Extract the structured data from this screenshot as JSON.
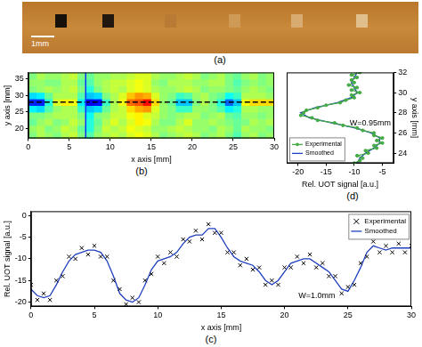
{
  "photo": {
    "caption": "(a)",
    "scale_label": "1mm"
  },
  "chart_data": [
    {
      "type": "heatmap",
      "caption": "(b)",
      "x_label": "x axis [mm]",
      "y_label": "y axis [mm]",
      "xlim": [
        0,
        30
      ],
      "xticks": [
        0,
        5,
        10,
        15,
        20,
        25,
        30
      ],
      "ylim": [
        17,
        37
      ],
      "yticks": [
        20,
        25,
        30,
        35
      ],
      "grid": false,
      "x": [
        0.5,
        1.5,
        2.5,
        3.5,
        4.5,
        5.5,
        6.5,
        7.5,
        8.5,
        9.5,
        10.5,
        11.5,
        12.5,
        13.5,
        14.5,
        15.5,
        16.5,
        17.5,
        18.5,
        19.5,
        20.5,
        21.5,
        22.5,
        23.5,
        24.5,
        25.5,
        26.5,
        27.5,
        28.5,
        29.5
      ],
      "y": [
        18,
        20,
        22,
        24,
        26,
        28,
        30,
        32,
        34,
        36
      ],
      "cells": [
        [
          -11,
          -10,
          -10.5,
          -11,
          -10,
          -9.5,
          -11,
          -12,
          -10.5,
          -10,
          -9.5,
          -10,
          -9,
          -8.5,
          -9,
          -10,
          -11,
          -10.5,
          -10,
          -9.5,
          -10,
          -11,
          -10.5,
          -10,
          -11,
          -12,
          -10.5,
          -10,
          -11,
          -10.5
        ],
        [
          -10.5,
          -10,
          -11,
          -10.5,
          -9.5,
          -10,
          -11.5,
          -13,
          -11,
          -9.5,
          -10,
          -9.5,
          -8.5,
          -9,
          -9.5,
          -10.5,
          -10.5,
          -10,
          -9.5,
          -10,
          -10.5,
          -10.5,
          -11,
          -10,
          -10.5,
          -11.5,
          -10,
          -10.5,
          -10.5,
          -11
        ],
        [
          -11.5,
          -10.5,
          -10,
          -11,
          -10.5,
          -9.5,
          -10.5,
          -13,
          -11.5,
          -10,
          -9,
          -10,
          -9,
          -8,
          -8.5,
          -10,
          -11,
          -11,
          -10,
          -9,
          -10.5,
          -10.5,
          -10,
          -10.5,
          -11,
          -11.5,
          -11,
          -10,
          -10.5,
          -10
        ],
        [
          -11,
          -11,
          -10.5,
          -10,
          -10,
          -10,
          -11,
          -13.5,
          -11,
          -10.5,
          -9.5,
          -9.5,
          -8.5,
          -8,
          -9,
          -9.5,
          -10.5,
          -11,
          -10.5,
          -10,
          -10,
          -11,
          -10.5,
          -10,
          -11.5,
          -12,
          -10.5,
          -10.5,
          -11,
          -10.5
        ],
        [
          -14,
          -14.5,
          -12,
          -10.5,
          -10,
          -10,
          -12.5,
          -15,
          -14.5,
          -11.5,
          -10,
          -9.5,
          -7.5,
          -6.5,
          -6,
          -9,
          -10.5,
          -11,
          -12.5,
          -12.5,
          -10.5,
          -10.5,
          -11,
          -12,
          -14,
          -13,
          -10,
          -10,
          -10.5,
          -10.5
        ],
        [
          -18.5,
          -18.5,
          -13,
          -9,
          -8,
          -8.5,
          -14,
          -19.5,
          -19,
          -12.5,
          -10,
          -8.5,
          -5,
          -4.5,
          -3,
          -7.5,
          -10.5,
          -11.5,
          -15,
          -15,
          -11,
          -10,
          -11,
          -13,
          -17,
          -15,
          -8.5,
          -7.5,
          -7.5,
          -7.5
        ],
        [
          -14.5,
          -14,
          -11.5,
          -10,
          -10,
          -10,
          -12,
          -15,
          -14.5,
          -11,
          -10,
          -9,
          -7,
          -6,
          -6.5,
          -9,
          -10.5,
          -11,
          -12.5,
          -12,
          -10.5,
          -10,
          -11,
          -11.5,
          -13.5,
          -12.5,
          -10,
          -10,
          -10,
          -10.5
        ],
        [
          -11,
          -10.5,
          -10,
          -10.5,
          -10,
          -9.5,
          -11,
          -13,
          -11,
          -10,
          -9.5,
          -10,
          -9,
          -8.5,
          -9,
          -10,
          -10.5,
          -10.5,
          -10,
          -9.5,
          -10,
          -11,
          -10.5,
          -10.5,
          -11,
          -11.5,
          -10.5,
          -10,
          -10.5,
          -11
        ],
        [
          -10.5,
          -10.5,
          -11,
          -11,
          -10,
          -10,
          -11.5,
          -12,
          -10.5,
          -10,
          -9.5,
          -9.5,
          -9,
          -8.5,
          -9,
          -10.5,
          -11,
          -10,
          -10,
          -10,
          -10.5,
          -10.5,
          -10,
          -10,
          -11,
          -12,
          -11,
          -10.5,
          -11,
          -10.5
        ],
        [
          -11,
          -10,
          -10.5,
          -10.5,
          -10,
          -9.5,
          -11,
          -11.5,
          -10.5,
          -10.5,
          -10,
          -10,
          -9.5,
          -9,
          -9,
          -10,
          -10.5,
          -10.5,
          -10,
          -9.5,
          -10,
          -11,
          -10.5,
          -10,
          -11,
          -11.5,
          -10.5,
          -10,
          -11,
          -10.5
        ]
      ],
      "color_range": [
        -22,
        0
      ],
      "hline": 28,
      "vline": 7
    },
    {
      "type": "line",
      "caption": "(d)",
      "x_label": "Rel. UOT signal [a.u.]",
      "y_label": "y axis [mm]",
      "xlim": [
        -22,
        -3
      ],
      "xticks": [
        -20,
        -15,
        -10,
        -5
      ],
      "ylim": [
        23,
        32
      ],
      "yticks": [
        24,
        26,
        28,
        30,
        32
      ],
      "grid": false,
      "legend": "lower left",
      "series": [
        {
          "name": "Experimental",
          "color": "#44aa44",
          "marker": "circle",
          "line_style": "solid",
          "x": [
            -10,
            -9,
            -8.5,
            -9.5,
            -7.5,
            -8,
            -6,
            -6.5,
            -5,
            -6,
            -5,
            -6.5,
            -6.5,
            -8.5,
            -9.5,
            -12,
            -13.5,
            -16.5,
            -17.5,
            -19.5,
            -19,
            -18.5,
            -16.5,
            -15,
            -12.5,
            -11.5,
            -10,
            -10.5,
            -9,
            -10.5,
            -9.5,
            -11,
            -10,
            -10.5,
            -9.5,
            -10.5,
            -9
          ],
          "y": [
            23,
            23.25,
            23.5,
            23.75,
            24,
            24.25,
            24.5,
            24.75,
            25,
            25.25,
            25.5,
            25.75,
            26,
            26.25,
            26.5,
            26.75,
            27,
            27.25,
            27.5,
            27.75,
            28,
            28.25,
            28.5,
            28.75,
            29,
            29.25,
            29.5,
            29.75,
            30,
            30.25,
            30.5,
            30.75,
            31,
            31.25,
            31.5,
            31.75,
            32
          ]
        },
        {
          "name": "Smoothed",
          "color": "#1f3fbf",
          "marker": "none",
          "line_style": "solid",
          "x": [
            -9.5,
            -9,
            -8,
            -6.5,
            -5.5,
            -5.5,
            -7,
            -10,
            -14,
            -18,
            -19.5,
            -17,
            -13,
            -10.5,
            -9.5,
            -10,
            -10.5,
            -10,
            -9.5
          ],
          "y": [
            23,
            23.5,
            24,
            24.5,
            25,
            25.5,
            26,
            26.5,
            27,
            27.5,
            28,
            28.5,
            29,
            29.5,
            30,
            30.5,
            31,
            31.5,
            32
          ]
        }
      ],
      "annotations": [
        {
          "text": "W=0.95mm",
          "x": -3.5,
          "y": 27
        }
      ]
    },
    {
      "type": "line",
      "caption": "(c)",
      "x_label": "x axis [mm]",
      "y_label": "Rel. UOT signal [a.u.]",
      "xlim": [
        0,
        30
      ],
      "xticks": [
        0,
        5,
        10,
        15,
        20,
        25,
        30
      ],
      "ylim": [
        -21,
        1
      ],
      "yticks": [
        -20,
        -15,
        -10,
        -5,
        0
      ],
      "grid": false,
      "legend": "upper right",
      "x": [
        0,
        0.5,
        1,
        1.5,
        2,
        2.5,
        3,
        3.5,
        4,
        4.5,
        5,
        5.5,
        6,
        6.5,
        7,
        7.5,
        8,
        8.5,
        9,
        9.5,
        10,
        10.5,
        11,
        11.5,
        12,
        12.5,
        13,
        13.5,
        14,
        14.5,
        15,
        15.5,
        16,
        16.5,
        17,
        17.5,
        18,
        18.5,
        19,
        19.5,
        20,
        20.5,
        21,
        21.5,
        22,
        22.5,
        23,
        23.5,
        24,
        24.5,
        25,
        25.5,
        26,
        26.5,
        27,
        27.5,
        28,
        28.5,
        29,
        29.5,
        30
      ],
      "series": [
        {
          "name": "Experimental",
          "color": "#000000",
          "marker": "x",
          "line_style": "none",
          "values": [
            -16,
            -19.5,
            -18,
            -19.5,
            -15,
            -14,
            -9.5,
            -10,
            -7.5,
            -9,
            -7,
            -9.5,
            -9.5,
            -15,
            -17,
            -20.5,
            -19,
            -20,
            -15,
            -13.5,
            -9.5,
            -11,
            -8.5,
            -9.5,
            -5.5,
            -6,
            -3.5,
            -5.5,
            -2,
            -4,
            -4,
            -8.5,
            -8.5,
            -11.5,
            -10,
            -12.5,
            -12,
            -16,
            -15,
            -16,
            -12,
            -12,
            -9.5,
            -11,
            -9,
            -12,
            -11,
            -14,
            -14,
            -18,
            -16.5,
            -16,
            -11,
            -9.5,
            -6,
            -8.5,
            -7,
            -8.5,
            -6.5,
            -8.5,
            -7
          ]
        },
        {
          "name": "Smoothed",
          "color": "#1f3fbf",
          "marker": "none",
          "line_style": "solid",
          "values": [
            -17,
            -18.5,
            -19,
            -18.5,
            -16,
            -13,
            -10.5,
            -9,
            -8.5,
            -8,
            -8,
            -8.5,
            -10.5,
            -14,
            -18,
            -19.5,
            -20,
            -19,
            -16,
            -12.5,
            -10.5,
            -10,
            -9.5,
            -8.5,
            -6.5,
            -5,
            -4.5,
            -4.5,
            -3,
            -3,
            -5,
            -7.5,
            -9.5,
            -10.5,
            -11,
            -11.5,
            -13,
            -15,
            -16,
            -15,
            -13,
            -11,
            -10.5,
            -10,
            -10,
            -11,
            -12,
            -13,
            -15,
            -17,
            -17.5,
            -15,
            -12,
            -8.5,
            -7,
            -7.5,
            -8,
            -7.5,
            -7.5,
            -7.5,
            -7.5
          ]
        }
      ],
      "annotations": [
        {
          "text": "W=1.0mm",
          "x": 24,
          "y": -18.5
        }
      ]
    }
  ]
}
